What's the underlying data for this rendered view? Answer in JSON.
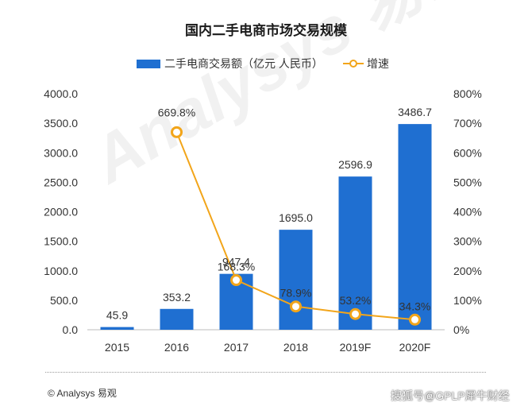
{
  "chart_data": {
    "type": "bar",
    "title": "国内二手电商市场交易规模",
    "categories": [
      "2015",
      "2016",
      "2017",
      "2018",
      "2019F",
      "2020F"
    ],
    "series": [
      {
        "name": "二手电商交易额（亿元 人民币）",
        "type": "bar",
        "axis": "left",
        "color": "#1f6fd1",
        "values": [
          45.9,
          353.2,
          947.4,
          1695.0,
          2596.9,
          3486.7
        ],
        "labels": [
          "45.9",
          "353.2",
          "947.4",
          "1695.0",
          "2596.9",
          "3486.7"
        ]
      },
      {
        "name": "增速",
        "type": "line",
        "axis": "right",
        "color": "#f2a51a",
        "values": [
          null,
          669.8,
          168.3,
          78.9,
          53.2,
          34.3
        ],
        "labels": [
          "",
          "669.8%",
          "168.3%",
          "78.9%",
          "53.2%",
          "34.3%"
        ]
      }
    ],
    "y_left": {
      "min": 0,
      "max": 4000,
      "ticks": [
        "0.0",
        "500.0",
        "1000.0",
        "1500.0",
        "2000.0",
        "2500.0",
        "3000.0",
        "3500.0",
        "4000.0"
      ]
    },
    "y_right": {
      "min": 0,
      "max": 800,
      "ticks": [
        "0%",
        "100%",
        "200%",
        "300%",
        "400%",
        "500%",
        "600%",
        "700%",
        "800%"
      ]
    },
    "legend_position": "top-center",
    "grid": false
  },
  "watermark": "Analysys 易观",
  "footer": {
    "source": "© Analysys 易观",
    "credit": "搜狐号@GPLP犀牛财经"
  }
}
